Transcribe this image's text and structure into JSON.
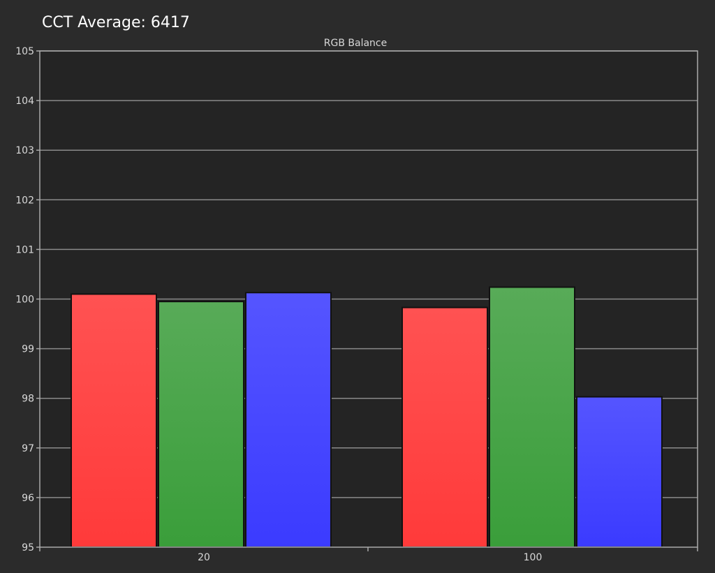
{
  "header": {
    "title": "CCT Average: 6417"
  },
  "colors": {
    "background": "#2b2b2b",
    "plot_background": "#242424",
    "grid": "#8a8a8a",
    "axis": "#aaaaaa",
    "red_top": "#ff5252",
    "red_bottom": "#ff3a3a",
    "green_top": "#58ab58",
    "green_bottom": "#3a9e3a",
    "blue_top": "#5555ff",
    "blue_bottom": "#3b3bff"
  },
  "chart_data": {
    "type": "bar",
    "title": "RGB Balance",
    "xlabel": "",
    "ylabel": "",
    "categories": [
      "20",
      "100"
    ],
    "series": [
      {
        "name": "Red",
        "values": [
          100.1,
          99.83
        ]
      },
      {
        "name": "Green",
        "values": [
          99.95,
          100.24
        ]
      },
      {
        "name": "Blue",
        "values": [
          100.13,
          98.03
        ]
      }
    ],
    "ylim": [
      95,
      105
    ],
    "yticks": [
      "95",
      "96",
      "97",
      "98",
      "99",
      "100",
      "101",
      "102",
      "103",
      "104",
      "105"
    ],
    "grid": true,
    "legend": "none"
  }
}
